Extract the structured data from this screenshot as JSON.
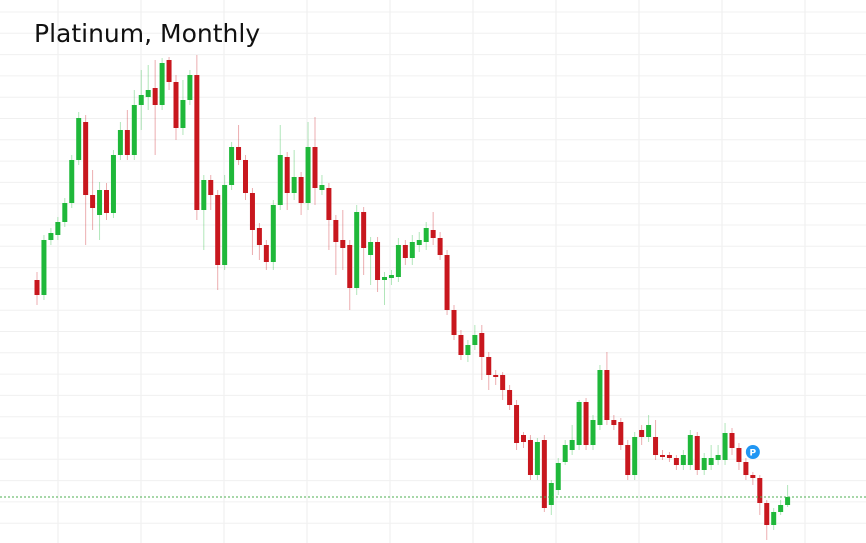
{
  "chart_data": {
    "type": "candlestick",
    "title": "Platinum, Monthly",
    "open": [
      270,
      255,
      310,
      315,
      328,
      347,
      390,
      428,
      355,
      335,
      360,
      337,
      395,
      420,
      395,
      445,
      453,
      462,
      445,
      490,
      468,
      422,
      450,
      475,
      340,
      370,
      355,
      285,
      365,
      403,
      390,
      357,
      322,
      305,
      288,
      345,
      393,
      357,
      373,
      347,
      403,
      360,
      362,
      330,
      310,
      305,
      262,
      338,
      295,
      308,
      270,
      272,
      273,
      305,
      292,
      305,
      308,
      320,
      312,
      295,
      240,
      215,
      195,
      205,
      217,
      193,
      175,
      175,
      160,
      145,
      115,
      110,
      75,
      110,
      45,
      60,
      88,
      100,
      105,
      148,
      105,
      125,
      180,
      130,
      128,
      105,
      75,
      120,
      113,
      113,
      95,
      95,
      92,
      85,
      85,
      114,
      80,
      85,
      90,
      90,
      117,
      102,
      88,
      75,
      72,
      47,
      25,
      38,
      45
    ],
    "high": [
      278,
      315,
      322,
      333,
      352,
      395,
      438,
      435,
      380,
      368,
      367,
      400,
      428,
      440,
      460,
      480,
      485,
      490,
      492,
      493,
      475,
      470,
      480,
      495,
      375,
      375,
      360,
      375,
      408,
      425,
      395,
      362,
      327,
      310,
      350,
      425,
      398,
      400,
      378,
      428,
      433,
      375,
      367,
      335,
      340,
      310,
      345,
      343,
      313,
      313,
      278,
      280,
      312,
      310,
      315,
      318,
      328,
      338,
      318,
      300,
      245,
      220,
      210,
      225,
      225,
      198,
      180,
      178,
      165,
      150,
      118,
      115,
      112,
      115,
      70,
      92,
      110,
      125,
      150,
      152,
      135,
      185,
      198,
      135,
      132,
      110,
      118,
      125,
      135,
      130,
      100,
      98,
      95,
      100,
      120,
      118,
      97,
      105,
      105,
      127,
      122,
      107,
      92,
      78,
      75,
      50,
      42,
      50,
      65
    ],
    "low": [
      245,
      250,
      305,
      310,
      323,
      342,
      385,
      305,
      320,
      310,
      330,
      332,
      390,
      390,
      390,
      420,
      440,
      395,
      440,
      460,
      410,
      415,
      445,
      330,
      300,
      340,
      260,
      280,
      360,
      385,
      350,
      295,
      290,
      280,
      280,
      340,
      340,
      350,
      335,
      340,
      345,
      355,
      300,
      275,
      280,
      240,
      255,
      275,
      265,
      258,
      245,
      265,
      268,
      285,
      285,
      298,
      300,
      305,
      290,
      235,
      210,
      190,
      188,
      200,
      170,
      160,
      165,
      150,
      140,
      100,
      102,
      70,
      70,
      38,
      35,
      55,
      85,
      95,
      100,
      100,
      100,
      120,
      125,
      120,
      100,
      70,
      70,
      105,
      108,
      90,
      90,
      88,
      80,
      80,
      80,
      75,
      75,
      80,
      85,
      85,
      95,
      80,
      70,
      65,
      35,
      10,
      20,
      35,
      43
    ],
    "close": [
      255,
      310,
      317,
      328,
      347,
      390,
      432,
      355,
      342,
      360,
      337,
      395,
      420,
      395,
      445,
      455,
      460,
      445,
      487,
      468,
      422,
      450,
      475,
      340,
      370,
      355,
      285,
      365,
      403,
      390,
      357,
      320,
      305,
      288,
      345,
      395,
      357,
      373,
      347,
      403,
      362,
      365,
      330,
      308,
      302,
      262,
      338,
      302,
      308,
      270,
      273,
      275,
      305,
      292,
      308,
      310,
      322,
      312,
      295,
      240,
      215,
      195,
      205,
      215,
      193,
      175,
      173,
      160,
      145,
      107,
      108,
      75,
      108,
      42,
      67,
      87,
      105,
      110,
      148,
      105,
      130,
      180,
      130,
      125,
      105,
      75,
      113,
      113,
      125,
      95,
      93,
      92,
      85,
      95,
      115,
      80,
      92,
      92,
      95,
      117,
      102,
      88,
      75,
      72,
      47,
      25,
      38,
      45,
      53
    ],
    "up_color": "#1fb83a",
    "down_color": "#c8171e",
    "ylim": [
      7,
      550
    ],
    "grid": true,
    "reference_line": {
      "value": 53,
      "color": "#4caf50"
    },
    "annotation": {
      "text": "P",
      "index": 103,
      "color": "#2196f3"
    }
  }
}
